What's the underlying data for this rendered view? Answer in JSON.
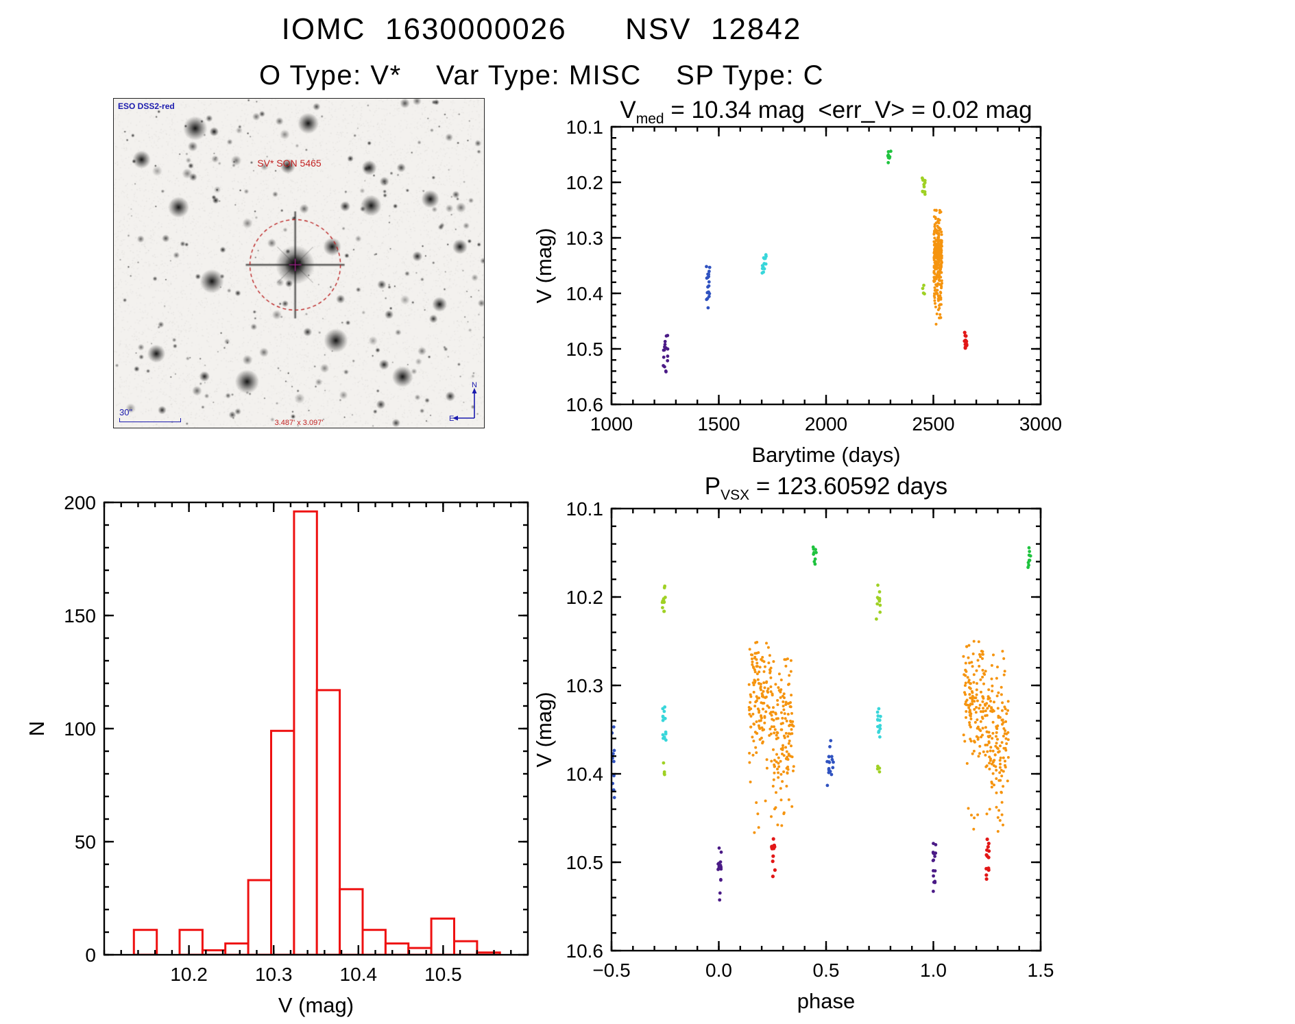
{
  "header": {
    "title": "IOMC  1630000026      NSV  12842",
    "subtitle": "O Type: V*    Var Type: MISC    SP Type: C"
  },
  "finder": {
    "survey_label": "ESO DSS2-red",
    "star_label": "SV* SON 5465",
    "scale_label": "30\"",
    "size_label": "3.487' x 3.097'",
    "compass": {
      "north": "N",
      "east": "E"
    },
    "target": {
      "fx": 0.49,
      "fy": 0.505,
      "circle_r": 66
    },
    "bright_stars": [
      [
        0.69,
        0.21
      ],
      [
        0.6,
        0.735
      ],
      [
        0.175,
        0.33
      ],
      [
        0.855,
        0.305
      ],
      [
        0.47,
        0.205
      ],
      [
        0.265,
        0.555
      ],
      [
        0.78,
        0.845
      ],
      [
        0.115,
        0.775
      ],
      [
        0.88,
        0.625
      ],
      [
        0.36,
        0.86
      ],
      [
        0.525,
        0.075
      ],
      [
        0.075,
        0.185
      ],
      [
        0.935,
        0.45
      ],
      [
        0.22,
        0.09
      ],
      [
        0.695,
        0.325
      ],
      [
        0.59,
        0.45
      ]
    ]
  },
  "chart_data": [
    {
      "id": "lightcurve",
      "type": "scatter",
      "title_parts": {
        "main": "V",
        "sub": "med",
        "rest": " = 10.34 mag  <err_V> = 0.02 mag"
      },
      "xlabel": "Barytime (days)",
      "ylabel": "V (mag)",
      "xlim": [
        1000,
        3000
      ],
      "ylim": [
        10.1,
        10.6
      ],
      "y_inverted": true,
      "xticks": [
        1000,
        1500,
        2000,
        2500,
        3000
      ],
      "xtick_labels": [
        "1000",
        "1500",
        "2000",
        "2500",
        "3000"
      ],
      "yticks": [
        10.1,
        10.2,
        10.3,
        10.4,
        10.5,
        10.6
      ],
      "ytick_labels": [
        "10.1",
        "10.2",
        "10.3",
        "10.4",
        "10.5",
        "10.6"
      ],
      "x_minor": 100,
      "y_minor": 0.02,
      "grid": false,
      "legend": "none",
      "clusters": [
        {
          "color": "#4a1a86",
          "x0": 1240,
          "x1": 1262,
          "y0": 10.47,
          "y1": 10.545,
          "n": 16,
          "dist": "tri",
          "r": 2.4
        },
        {
          "color": "#2f52c0",
          "x0": 1438,
          "x1": 1458,
          "y0": 10.33,
          "y1": 10.432,
          "n": 18,
          "dist": "tri",
          "r": 2.4
        },
        {
          "color": "#38d6da",
          "x0": 1702,
          "x1": 1722,
          "y0": 10.318,
          "y1": 10.375,
          "n": 14,
          "dist": "tri",
          "r": 2.4
        },
        {
          "color": "#1fc33e",
          "x0": 2288,
          "x1": 2302,
          "y0": 10.138,
          "y1": 10.168,
          "n": 9,
          "dist": "tri",
          "r": 2.4
        },
        {
          "color": "#9fd124",
          "x0": 2448,
          "x1": 2462,
          "y0": 10.183,
          "y1": 10.232,
          "n": 12,
          "dist": "tri",
          "r": 2.4
        },
        {
          "color": "#9fd124",
          "x0": 2450,
          "x1": 2460,
          "y0": 10.385,
          "y1": 10.402,
          "n": 4,
          "dist": "uniform",
          "r": 2.4
        },
        {
          "color": "#f5940f",
          "x0": 2502,
          "x1": 2540,
          "y0": 10.248,
          "y1": 10.452,
          "n": 270,
          "dist": "norm",
          "yc": 10.33,
          "ys": 0.042,
          "r": 2.0
        },
        {
          "color": "#f5940f",
          "x0": 2506,
          "x1": 2536,
          "y0": 10.4,
          "y1": 10.458,
          "n": 14,
          "dist": "uniform",
          "r": 2.0
        },
        {
          "color": "#e21717",
          "x0": 2644,
          "x1": 2656,
          "y0": 10.465,
          "y1": 10.522,
          "n": 13,
          "dist": "tri",
          "r": 2.6
        }
      ]
    },
    {
      "id": "histogram",
      "type": "bar",
      "xlabel": "V (mag)",
      "ylabel": "N",
      "xlim": [
        10.1,
        10.6
      ],
      "ylim": [
        0,
        200
      ],
      "y_inverted": false,
      "xticks": [
        10.2,
        10.3,
        10.4,
        10.5
      ],
      "xtick_labels": [
        "10.2",
        "10.3",
        "10.4",
        "10.5"
      ],
      "yticks": [
        0,
        50,
        100,
        150,
        200
      ],
      "ytick_labels": [
        "0",
        "50",
        "100",
        "150",
        "200"
      ],
      "x_minor": 0.02,
      "y_minor": 10,
      "grid": false,
      "legend": "none",
      "bar_color": "#ee1111",
      "bin_start": 10.135,
      "bin_width": 0.027,
      "counts": [
        11,
        0,
        11,
        2,
        5,
        33,
        99,
        196,
        117,
        29,
        11,
        5,
        3,
        16,
        6,
        1
      ]
    },
    {
      "id": "phase",
      "type": "scatter",
      "title_parts": {
        "main": "P",
        "sub": "VSX",
        "rest": " = 123.60592 days"
      },
      "xlabel": "phase",
      "ylabel": "V (mag)",
      "xlim": [
        -0.5,
        1.5
      ],
      "ylim": [
        10.1,
        10.6
      ],
      "y_inverted": true,
      "xticks": [
        -0.5,
        0.0,
        0.5,
        1.0,
        1.5
      ],
      "xtick_labels": [
        "−0.5",
        "0.0",
        "0.5",
        "1.0",
        "1.5"
      ],
      "yticks": [
        10.1,
        10.2,
        10.3,
        10.4,
        10.5,
        10.6
      ],
      "ytick_labels": [
        "10.1",
        "10.2",
        "10.3",
        "10.4",
        "10.5",
        "10.6"
      ],
      "x_minor": 0.1,
      "y_minor": 0.02,
      "grid": false,
      "legend": "none",
      "clusters": [
        {
          "color": "#2f52c0",
          "x0": -0.5,
          "x1": -0.485,
          "y0": 10.33,
          "y1": 10.432,
          "n": 10,
          "dist": "tri",
          "r": 2.4
        },
        {
          "color": "#9fd124",
          "x0": -0.266,
          "x1": -0.248,
          "y0": 10.183,
          "y1": 10.232,
          "n": 12,
          "dist": "tri",
          "r": 2.4
        },
        {
          "color": "#38d6da",
          "x0": -0.263,
          "x1": -0.246,
          "y0": 10.318,
          "y1": 10.375,
          "n": 14,
          "dist": "tri",
          "r": 2.4
        },
        {
          "color": "#9fd124",
          "x0": -0.26,
          "x1": -0.25,
          "y0": 10.385,
          "y1": 10.402,
          "n": 4,
          "dist": "uniform",
          "r": 2.4
        },
        {
          "color": "#4a1a86",
          "x0": -0.004,
          "x1": 0.012,
          "y0": 10.47,
          "y1": 10.545,
          "n": 16,
          "dist": "tri",
          "r": 2.4
        },
        {
          "color": "#f5940f",
          "x0": 0.14,
          "x1": 0.245,
          "y0": 10.248,
          "y1": 10.42,
          "n": 135,
          "dist": "norm",
          "yc": 10.315,
          "ys": 0.038,
          "r": 2.0
        },
        {
          "color": "#f5940f",
          "x0": 0.245,
          "x1": 0.35,
          "y0": 10.26,
          "y1": 10.46,
          "n": 135,
          "dist": "norm",
          "yc": 10.35,
          "ys": 0.042,
          "r": 2.0
        },
        {
          "color": "#f5940f",
          "x0": 0.16,
          "x1": 0.33,
          "y0": 10.408,
          "y1": 10.47,
          "n": 12,
          "dist": "uniform",
          "r": 2.0
        },
        {
          "color": "#e21717",
          "x0": 0.246,
          "x1": 0.262,
          "y0": 10.465,
          "y1": 10.522,
          "n": 13,
          "dist": "tri",
          "r": 2.6
        },
        {
          "color": "#1fc33e",
          "x0": 0.44,
          "x1": 0.456,
          "y0": 10.138,
          "y1": 10.168,
          "n": 9,
          "dist": "tri",
          "r": 2.4
        },
        {
          "color": "#2f52c0",
          "x0": 0.505,
          "x1": 0.535,
          "y0": 10.33,
          "y1": 10.432,
          "n": 18,
          "dist": "tri",
          "r": 2.4
        },
        {
          "color": "#38d6da",
          "x0": 0.737,
          "x1": 0.754,
          "y0": 10.318,
          "y1": 10.375,
          "n": 14,
          "dist": "tri",
          "r": 2.4
        },
        {
          "color": "#9fd124",
          "x0": 0.734,
          "x1": 0.752,
          "y0": 10.183,
          "y1": 10.232,
          "n": 12,
          "dist": "tri",
          "r": 2.4
        },
        {
          "color": "#9fd124",
          "x0": 0.74,
          "x1": 0.75,
          "y0": 10.385,
          "y1": 10.402,
          "n": 4,
          "dist": "uniform",
          "r": 2.4
        },
        {
          "color": "#4a1a86",
          "x0": 0.996,
          "x1": 1.012,
          "y0": 10.47,
          "y1": 10.545,
          "n": 16,
          "dist": "tri",
          "r": 2.4
        },
        {
          "color": "#f5940f",
          "x0": 1.14,
          "x1": 1.245,
          "y0": 10.248,
          "y1": 10.42,
          "n": 135,
          "dist": "norm",
          "yc": 10.315,
          "ys": 0.038,
          "r": 2.0
        },
        {
          "color": "#f5940f",
          "x0": 1.245,
          "x1": 1.35,
          "y0": 10.26,
          "y1": 10.46,
          "n": 135,
          "dist": "norm",
          "yc": 10.35,
          "ys": 0.042,
          "r": 2.0
        },
        {
          "color": "#f5940f",
          "x0": 1.16,
          "x1": 1.33,
          "y0": 10.408,
          "y1": 10.47,
          "n": 12,
          "dist": "uniform",
          "r": 2.0
        },
        {
          "color": "#e21717",
          "x0": 1.246,
          "x1": 1.262,
          "y0": 10.465,
          "y1": 10.522,
          "n": 13,
          "dist": "tri",
          "r": 2.6
        },
        {
          "color": "#1fc33e",
          "x0": 1.44,
          "x1": 1.456,
          "y0": 10.138,
          "y1": 10.168,
          "n": 9,
          "dist": "tri",
          "r": 2.4
        }
      ]
    }
  ]
}
